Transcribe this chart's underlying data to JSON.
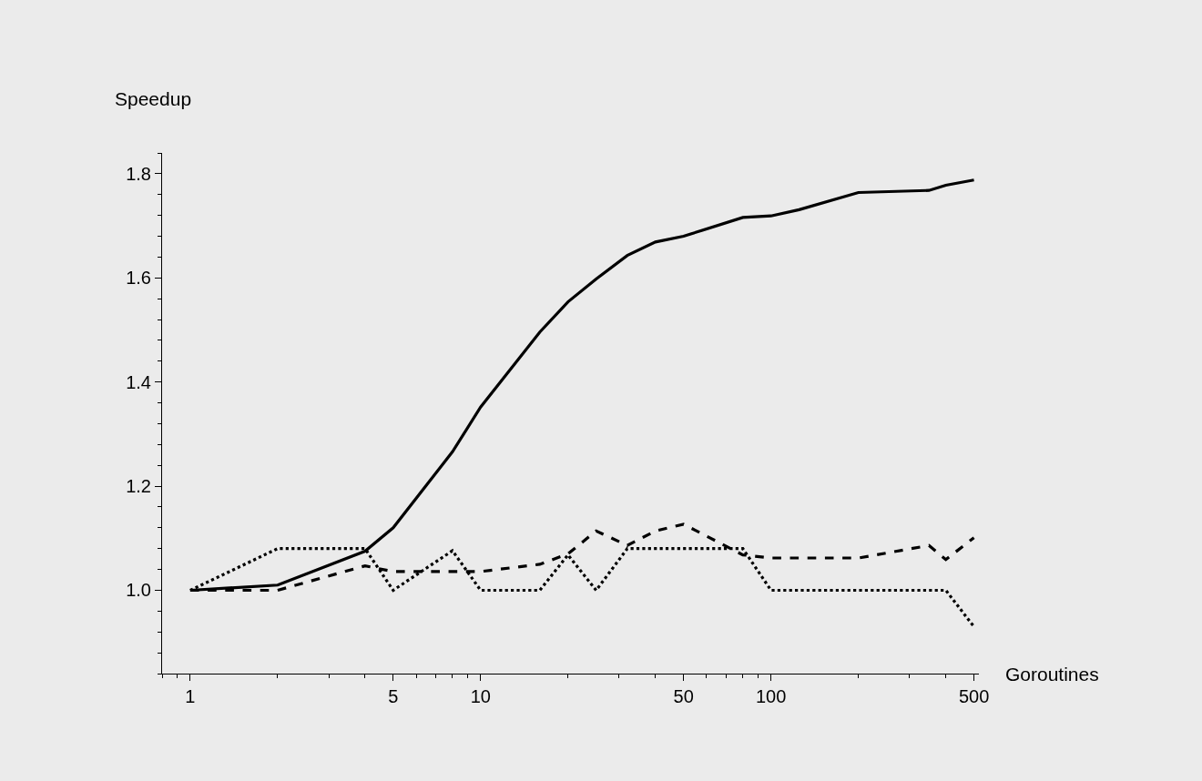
{
  "chart_data": {
    "type": "line",
    "xlabel": "Goroutines",
    "ylabel": "Speedup",
    "log": "x",
    "grid": false,
    "marker": "none",
    "xlim": [
      0.8,
      520
    ],
    "xticks": [
      1,
      5,
      10,
      50,
      100,
      500
    ],
    "ylim": [
      0.84,
      1.84
    ],
    "yticks": [
      {
        "value": 1.0,
        "label": "1.0"
      },
      {
        "value": 1.2,
        "label": "1.2"
      },
      {
        "value": 1.4,
        "label": "1.4"
      },
      {
        "value": 1.6,
        "label": "1.6"
      },
      {
        "value": 1.8,
        "label": "1.8"
      }
    ],
    "series": [
      {
        "color": "#000000",
        "line_style": "solid",
        "x": [
          1,
          2,
          4,
          5,
          8,
          10,
          16,
          20,
          25,
          32,
          40,
          50,
          80,
          100,
          125,
          200,
          350,
          400,
          500
        ],
        "values": [
          1.0,
          1.01,
          1.075,
          1.12,
          1.266,
          1.352,
          1.496,
          1.554,
          1.598,
          1.643,
          1.669,
          1.68,
          1.716,
          1.719,
          1.731,
          1.764,
          1.768,
          1.778,
          1.788
        ]
      },
      {
        "color": "#000000",
        "line_style": "dashed",
        "x": [
          1,
          2,
          4,
          5,
          10,
          16,
          20,
          25,
          32,
          40,
          50,
          80,
          100,
          200,
          350,
          400,
          500
        ],
        "values": [
          1.0,
          1.0,
          1.047,
          1.036,
          1.036,
          1.05,
          1.07,
          1.114,
          1.086,
          1.114,
          1.127,
          1.068,
          1.062,
          1.062,
          1.086,
          1.059,
          1.101
        ]
      },
      {
        "color": "#000000",
        "line_style": "dotted",
        "x": [
          1,
          2,
          4,
          5,
          8,
          10,
          16,
          20,
          25,
          32,
          80,
          100,
          400,
          500
        ],
        "values": [
          1.0,
          1.08,
          1.08,
          1.0,
          1.076,
          1.0,
          1.0,
          1.068,
          1.0,
          1.08,
          1.08,
          1.0,
          1.0,
          0.93
        ]
      }
    ]
  }
}
